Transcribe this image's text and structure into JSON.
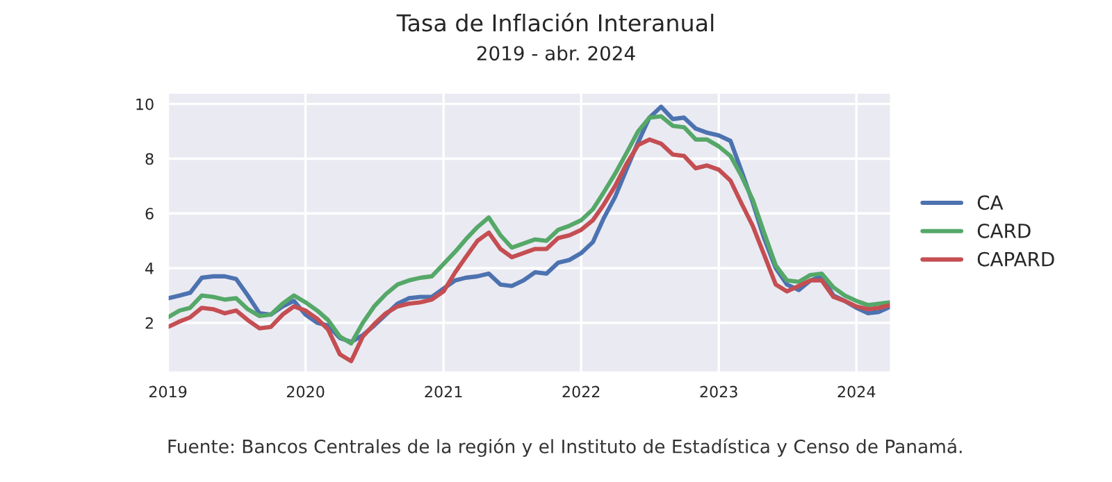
{
  "chart_data": {
    "type": "line",
    "title": "Tasa de Inflación Interanual",
    "subtitle": "2019 - abr. 2024",
    "x": [
      "2019-01",
      "2019-02",
      "2019-03",
      "2019-04",
      "2019-05",
      "2019-06",
      "2019-07",
      "2019-08",
      "2019-09",
      "2019-10",
      "2019-11",
      "2019-12",
      "2020-01",
      "2020-02",
      "2020-03",
      "2020-04",
      "2020-05",
      "2020-06",
      "2020-07",
      "2020-08",
      "2020-09",
      "2020-10",
      "2020-11",
      "2020-12",
      "2021-01",
      "2021-02",
      "2021-03",
      "2021-04",
      "2021-05",
      "2021-06",
      "2021-07",
      "2021-08",
      "2021-09",
      "2021-10",
      "2021-11",
      "2021-12",
      "2022-01",
      "2022-02",
      "2022-03",
      "2022-04",
      "2022-05",
      "2022-06",
      "2022-07",
      "2022-08",
      "2022-09",
      "2022-10",
      "2022-11",
      "2022-12",
      "2023-01",
      "2023-02",
      "2023-03",
      "2023-04",
      "2023-05",
      "2023-06",
      "2023-07",
      "2023-08",
      "2023-09",
      "2023-10",
      "2023-11",
      "2023-12",
      "2024-01",
      "2024-02",
      "2024-03",
      "2024-04"
    ],
    "series": [
      {
        "name": "CA",
        "color": "#4c72b0",
        "values": [
          2.9,
          3.0,
          3.1,
          3.65,
          3.7,
          3.7,
          3.6,
          3.0,
          2.35,
          2.3,
          2.6,
          2.8,
          2.3,
          2.0,
          1.9,
          1.45,
          1.3,
          1.55,
          1.9,
          2.3,
          2.7,
          2.9,
          2.95,
          2.95,
          3.25,
          3.55,
          3.65,
          3.7,
          3.8,
          3.4,
          3.35,
          3.55,
          3.85,
          3.8,
          4.2,
          4.3,
          4.55,
          4.95,
          5.8,
          6.6,
          7.6,
          8.6,
          9.5,
          9.9,
          9.45,
          9.5,
          9.1,
          8.95,
          8.85,
          8.65,
          7.6,
          6.4,
          5.1,
          4.0,
          3.4,
          3.2,
          3.55,
          3.7,
          3.0,
          2.8,
          2.55,
          2.35,
          2.4,
          2.6
        ]
      },
      {
        "name": "CARD",
        "color": "#55a868",
        "values": [
          2.2,
          2.45,
          2.55,
          3.0,
          2.95,
          2.85,
          2.9,
          2.5,
          2.25,
          2.3,
          2.7,
          3.0,
          2.75,
          2.45,
          2.1,
          1.5,
          1.25,
          2.0,
          2.6,
          3.05,
          3.4,
          3.55,
          3.65,
          3.7,
          4.15,
          4.6,
          5.05,
          5.5,
          5.85,
          5.2,
          4.75,
          4.9,
          5.05,
          5.0,
          5.4,
          5.55,
          5.75,
          6.15,
          6.75,
          7.45,
          8.2,
          9.0,
          9.5,
          9.55,
          9.2,
          9.15,
          8.7,
          8.7,
          8.45,
          8.1,
          7.4,
          6.5,
          5.3,
          4.1,
          3.55,
          3.5,
          3.75,
          3.8,
          3.3,
          3.0,
          2.8,
          2.65,
          2.7,
          2.75
        ]
      },
      {
        "name": "CAPARD",
        "color": "#c44e52",
        "values": [
          1.85,
          2.05,
          2.2,
          2.55,
          2.5,
          2.35,
          2.45,
          2.1,
          1.8,
          1.85,
          2.3,
          2.6,
          2.45,
          2.15,
          1.75,
          0.85,
          0.6,
          1.5,
          1.95,
          2.35,
          2.6,
          2.7,
          2.75,
          2.85,
          3.15,
          3.85,
          4.4,
          5.0,
          5.3,
          4.7,
          4.4,
          4.55,
          4.7,
          4.7,
          5.1,
          5.2,
          5.4,
          5.75,
          6.3,
          7.0,
          7.8,
          8.5,
          8.7,
          8.55,
          8.15,
          8.1,
          7.65,
          7.75,
          7.6,
          7.2,
          6.4,
          5.55,
          4.5,
          3.4,
          3.15,
          3.35,
          3.55,
          3.55,
          2.95,
          2.8,
          2.6,
          2.5,
          2.55,
          2.65
        ]
      }
    ],
    "xlim": [
      "2019-01",
      "2024-04"
    ],
    "xticks": [
      {
        "value": "2019-01",
        "label": "2019"
      },
      {
        "value": "2020-01",
        "label": "2020"
      },
      {
        "value": "2021-01",
        "label": "2021"
      },
      {
        "value": "2022-01",
        "label": "2022"
      },
      {
        "value": "2023-01",
        "label": "2023"
      },
      {
        "value": "2024-01",
        "label": "2024"
      }
    ],
    "ylim": [
      0.2,
      10.4
    ],
    "yticks": [
      2,
      4,
      6,
      8,
      10
    ],
    "grid": true,
    "legend": "right",
    "marker": "none",
    "line_style": "solid",
    "annotations": [
      "Fuente: Bancos Centrales de la región y el Instituto de Estadística y Censo de Panamá."
    ]
  }
}
